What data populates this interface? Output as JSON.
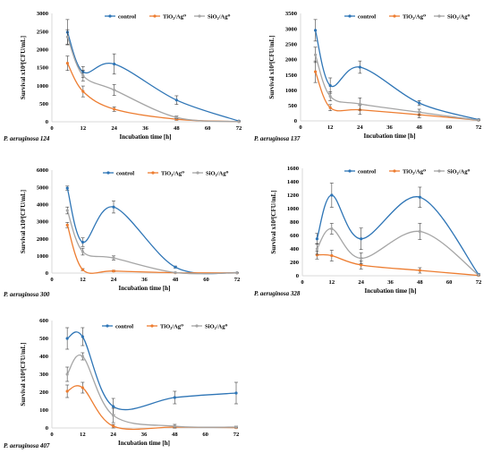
{
  "colors": {
    "control": "#2e75b6",
    "tio2": "#ed7d31",
    "sio2": "#a5a5a5",
    "axis": "#d9d9d9",
    "text": "#000000",
    "error_bar": "#404040"
  },
  "chart_data": [
    {
      "type": "line",
      "strain_label": "P. aeruginosa 124",
      "xlabel": "Incubation time [h]",
      "ylabel": "Survival x10⁴[CFU/mL]",
      "x_ticks": [
        "0",
        "12",
        "24",
        "36",
        "48",
        "60",
        "72"
      ],
      "y_ticks": [
        "0",
        "500",
        "1000",
        "1500",
        "2000",
        "2500",
        "3000"
      ],
      "xlim": [
        0,
        72
      ],
      "ylim": [
        0,
        3000
      ],
      "legend": "top-right",
      "x": [
        6,
        12,
        24,
        48,
        72
      ],
      "series": [
        {
          "name": "control",
          "values": [
            2480,
            1380,
            1600,
            600,
            20
          ],
          "errors": [
            350,
            150,
            280,
            120,
            10
          ]
        },
        {
          "name": "TiO₂/Ag⁰",
          "values": [
            1620,
            840,
            350,
            70,
            5
          ],
          "errors": [
            200,
            150,
            60,
            30,
            5
          ]
        },
        {
          "name": "SiO₂/Ag⁰",
          "values": [
            2350,
            1280,
            880,
            120,
            5
          ],
          "errors": [
            200,
            150,
            150,
            40,
            5
          ]
        }
      ]
    },
    {
      "type": "line",
      "strain_label": "P. aeruginosa 137",
      "xlabel": "Incubation time [h]",
      "ylabel": "Survival x10⁴[CFU/mL]",
      "x_ticks": [
        "0",
        "12",
        "24",
        "36",
        "48",
        "60",
        "72"
      ],
      "y_ticks": [
        "0",
        "500",
        "1000",
        "1500",
        "2000",
        "2500",
        "3000",
        "3500"
      ],
      "xlim": [
        0,
        72
      ],
      "ylim": [
        0,
        3500
      ],
      "legend": "top-right",
      "x": [
        6,
        12,
        24,
        48,
        72
      ],
      "series": [
        {
          "name": "control",
          "values": [
            2950,
            1150,
            1750,
            580,
            40
          ],
          "errors": [
            350,
            250,
            200,
            80,
            20
          ]
        },
        {
          "name": "TiO₂/Ag⁰",
          "values": [
            1600,
            430,
            360,
            200,
            20
          ],
          "errors": [
            350,
            100,
            150,
            100,
            10
          ]
        },
        {
          "name": "SiO₂/Ag⁰",
          "values": [
            2150,
            800,
            550,
            280,
            20
          ],
          "errors": [
            250,
            150,
            200,
            100,
            10
          ]
        }
      ]
    },
    {
      "type": "line",
      "strain_label": "P. aeruginosa 300",
      "xlabel": "Incubation time [h]",
      "ylabel": "Survival x10⁴[CFU/mL]",
      "x_ticks": [
        "0",
        "12",
        "24",
        "36",
        "48",
        "60",
        "72"
      ],
      "y_ticks": [
        "0",
        "1000",
        "2000",
        "3000",
        "4000",
        "5000",
        "6000"
      ],
      "xlim": [
        0,
        72
      ],
      "ylim": [
        0,
        6000
      ],
      "legend": "top-right",
      "x": [
        6,
        12,
        24,
        48,
        72
      ],
      "series": [
        {
          "name": "control",
          "values": [
            4950,
            1800,
            3850,
            350,
            20
          ],
          "errors": [
            120,
            250,
            350,
            60,
            10
          ]
        },
        {
          "name": "TiO₂/Ag⁰",
          "values": [
            2800,
            200,
            120,
            20,
            10
          ],
          "errors": [
            150,
            60,
            40,
            10,
            5
          ]
        },
        {
          "name": "SiO₂/Ag⁰",
          "values": [
            3650,
            1250,
            880,
            30,
            10
          ],
          "errors": [
            200,
            200,
            120,
            10,
            5
          ]
        }
      ]
    },
    {
      "type": "line",
      "strain_label": "P. aeruginosa 328",
      "xlabel": "Incubation time [h]",
      "ylabel": "Survival x10⁴[CFU/mL]",
      "x_ticks": [
        "0",
        "12",
        "24",
        "36",
        "48",
        "60",
        "72"
      ],
      "y_ticks": [
        "0",
        "200",
        "400",
        "600",
        "800",
        "1000",
        "1200",
        "1400",
        "1600"
      ],
      "xlim": [
        0,
        72
      ],
      "ylim": [
        0,
        1600
      ],
      "legend": "top-right",
      "x": [
        6,
        12,
        24,
        48,
        72
      ],
      "series": [
        {
          "name": "control",
          "values": [
            550,
            1200,
            550,
            1170,
            20
          ],
          "errors": [
            80,
            180,
            160,
            150,
            10
          ]
        },
        {
          "name": "TiO₂/Ag⁰",
          "values": [
            310,
            300,
            160,
            80,
            5
          ],
          "errors": [
            60,
            80,
            60,
            40,
            5
          ]
        },
        {
          "name": "SiO₂/Ag⁰",
          "values": [
            400,
            700,
            260,
            660,
            10
          ],
          "errors": [
            80,
            80,
            80,
            120,
            5
          ]
        }
      ]
    },
    {
      "type": "line",
      "strain_label": "P. aeruginosa 407",
      "xlabel": "Incubation time [h]",
      "ylabel": "Survival x10⁴[CFU/mL]",
      "x_ticks": [
        "0",
        "12",
        "24",
        "36",
        "48",
        "60",
        "72"
      ],
      "y_ticks": [
        "0",
        "100",
        "200",
        "300",
        "400",
        "500",
        "600"
      ],
      "xlim": [
        0,
        72
      ],
      "ylim": [
        0,
        600
      ],
      "legend": "top-right",
      "x": [
        6,
        12,
        24,
        48,
        72
      ],
      "series": [
        {
          "name": "control",
          "values": [
            500,
            510,
            120,
            170,
            195
          ],
          "errors": [
            60,
            50,
            45,
            35,
            60
          ]
        },
        {
          "name": "TiO₂/Ag⁰",
          "values": [
            205,
            225,
            10,
            5,
            2
          ],
          "errors": [
            35,
            30,
            10,
            5,
            2
          ]
        },
        {
          "name": "SiO₂/Ag⁰",
          "values": [
            300,
            400,
            70,
            10,
            5
          ],
          "errors": [
            40,
            20,
            40,
            10,
            5
          ]
        }
      ]
    }
  ]
}
